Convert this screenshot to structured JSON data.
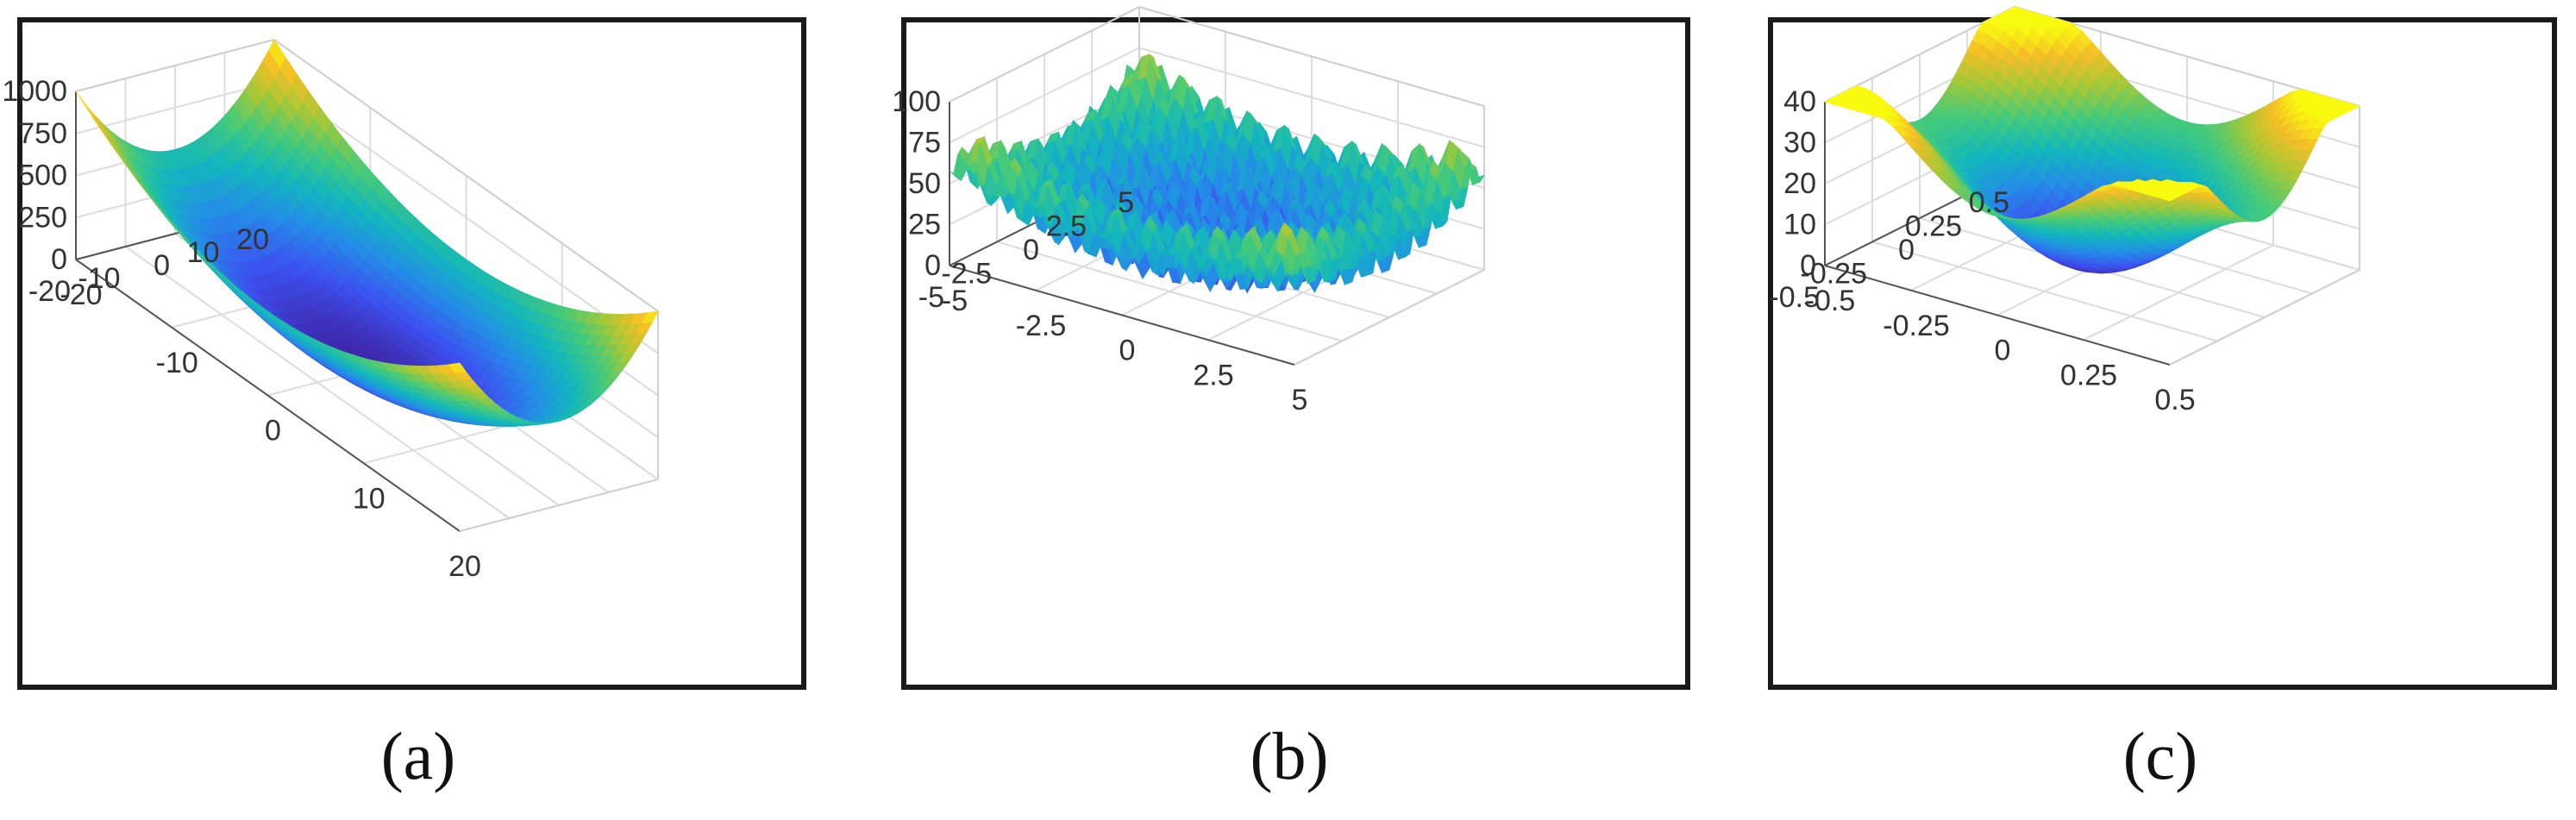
{
  "colors": {
    "viridis_low": "#3e1ef5",
    "viridis_mid": "#21b7a3",
    "viridis_high": "#f9fb0e",
    "frame": "#1a1a1a",
    "grid": "#dddddd"
  },
  "captions": [
    "(a)",
    "(b)",
    "(c)"
  ],
  "chart_data": [
    {
      "type": "surface",
      "label": "(a)",
      "function": "x^2 + y^2 (bowl)",
      "xlim": [
        -20,
        20
      ],
      "ylim": [
        -20,
        20
      ],
      "zlim": [
        0,
        1000
      ],
      "xticks": [
        -20,
        -10,
        0,
        10,
        20
      ],
      "yticks": [
        -20,
        -10,
        0,
        10,
        20
      ],
      "zticks": [
        0,
        250,
        500,
        750,
        1000
      ],
      "xtick_labels": [
        "-20",
        "-10",
        "0",
        "10",
        "20"
      ],
      "ytick_labels": [
        "-20",
        "-10",
        "0",
        "10",
        "20"
      ],
      "ztick_labels": [
        "0",
        "250",
        "500",
        "750",
        "1000"
      ],
      "grid": true,
      "colormap": "parula"
    },
    {
      "type": "surface",
      "label": "(b)",
      "function": "Rastrigin-like multimodal",
      "xlim": [
        -5,
        5
      ],
      "ylim": [
        -5,
        5
      ],
      "zlim": [
        0,
        100
      ],
      "xticks": [
        -5,
        -2.5,
        0,
        2.5,
        5
      ],
      "yticks": [
        -5,
        -2.5,
        0,
        2.5,
        5
      ],
      "zticks": [
        0,
        25,
        50,
        75,
        100
      ],
      "xtick_labels": [
        "-5",
        "-2.5",
        "0",
        "2.5",
        "5"
      ],
      "ytick_labels": [
        "-5",
        "-2.5",
        "0",
        "2.5",
        "5"
      ],
      "ztick_labels": [
        "0",
        "25",
        "50",
        "75",
        "100"
      ],
      "grid": true,
      "colormap": "parula"
    },
    {
      "type": "surface",
      "label": "(c)",
      "function": "smooth periodic surface with central minimum",
      "xlim": [
        -0.5,
        0.5
      ],
      "ylim": [
        -0.5,
        0.5
      ],
      "zlim": [
        0,
        40
      ],
      "xticks": [
        -0.5,
        -0.25,
        0,
        0.25,
        0.5
      ],
      "yticks": [
        -0.5,
        -0.25,
        0,
        0.25,
        0.5
      ],
      "zticks": [
        0,
        10,
        20,
        30,
        40
      ],
      "xtick_labels": [
        "-0.5",
        "-0.25",
        "0",
        "0.25",
        "0.5"
      ],
      "ytick_labels": [
        "-0.5",
        "-0.25",
        "0",
        "0.25",
        "0.5"
      ],
      "ztick_labels": [
        "0",
        "10",
        "20",
        "30",
        "40"
      ],
      "grid": true,
      "colormap": "parula"
    }
  ]
}
